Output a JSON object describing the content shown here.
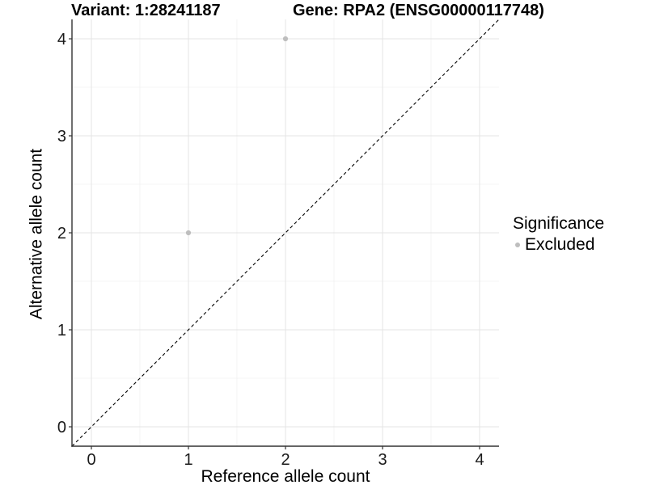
{
  "header": {
    "variant_title": "Variant: 1:28241187",
    "gene_title": "Gene: RPA2 (ENSG00000117748)"
  },
  "legend": {
    "title": "Significance",
    "items": [
      {
        "label": "Excluded",
        "color": "#bebebe"
      }
    ]
  },
  "axes": {
    "x": {
      "label": "Reference allele count",
      "ticks": [
        0,
        1,
        2,
        3,
        4
      ]
    },
    "y": {
      "label": "Alternative allele count",
      "ticks": [
        0,
        1,
        2,
        3,
        4
      ]
    }
  },
  "colors": {
    "point": "#bebebe",
    "grid_major": "#e4e4e4",
    "grid_minor": "#f1f1f1",
    "axis_line": "#333333",
    "identity_line": "#000000",
    "tick_text": "#1a1a1a"
  },
  "chart_data": {
    "type": "scatter",
    "title": "Variant: 1:28241187   Gene: RPA2 (ENSG00000117748)",
    "xlabel": "Reference allele count",
    "ylabel": "Alternative allele count",
    "xlim": [
      -0.2,
      4.2
    ],
    "ylim": [
      -0.2,
      4.2
    ],
    "x_ticks": [
      0,
      1,
      2,
      3,
      4
    ],
    "y_ticks": [
      0,
      1,
      2,
      3,
      4
    ],
    "grid": "on",
    "legend_position": "right",
    "legend_title": "Significance",
    "series": [
      {
        "name": "Excluded",
        "color": "#bebebe",
        "marker": "circle",
        "points": [
          [
            1,
            2
          ],
          [
            2,
            4
          ]
        ]
      }
    ],
    "reference_line": {
      "type": "identity y=x",
      "style": "dashed",
      "color": "#000000",
      "from": [
        -0.2,
        -0.2
      ],
      "to": [
        4.2,
        4.2
      ]
    }
  }
}
